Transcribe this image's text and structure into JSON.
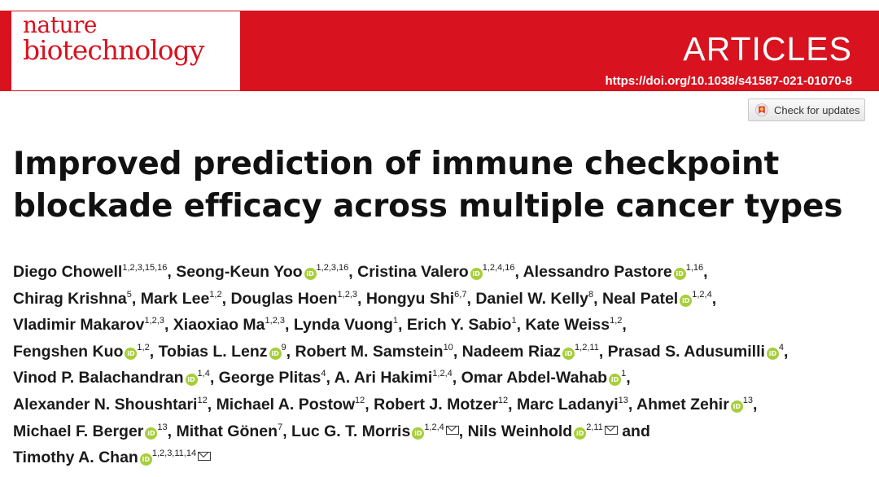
{
  "journal": {
    "name_line1": "nature",
    "name_line2": "biotechnology"
  },
  "header": {
    "section": "ARTICLES",
    "doi": "https://doi.org/10.1038/s41587-021-01070-8"
  },
  "check_updates": {
    "label": "Check for updates"
  },
  "title": {
    "line1": "Improved prediction of immune checkpoint",
    "line2": "blockade efficacy across multiple cancer types"
  },
  "authors": [
    [
      {
        "name": "Diego Chowell",
        "aff": "1,2,3,15,16",
        "orcid": false,
        "sep": ", "
      },
      {
        "name": "Seong-Keun Yoo",
        "aff": "1,2,3,16",
        "orcid": true,
        "sep": ", "
      },
      {
        "name": "Cristina Valero",
        "aff": "1,2,4,16",
        "orcid": true,
        "sep": ", "
      },
      {
        "name": "Alessandro Pastore",
        "aff": "1,16",
        "orcid": true,
        "sep": ","
      }
    ],
    [
      {
        "name": "Chirag Krishna",
        "aff": "5",
        "orcid": false,
        "sep": ", "
      },
      {
        "name": "Mark Lee",
        "aff": "1,2",
        "orcid": false,
        "sep": ", "
      },
      {
        "name": "Douglas Hoen",
        "aff": "1,2,3",
        "orcid": false,
        "sep": ", "
      },
      {
        "name": "Hongyu Shi",
        "aff": "6,7",
        "orcid": false,
        "sep": ", "
      },
      {
        "name": "Daniel W. Kelly",
        "aff": "8",
        "orcid": false,
        "sep": ", "
      },
      {
        "name": "Neal Patel",
        "aff": "1,2,4",
        "orcid": true,
        "sep": ","
      }
    ],
    [
      {
        "name": "Vladimir Makarov",
        "aff": "1,2,3",
        "orcid": false,
        "sep": ", "
      },
      {
        "name": "Xiaoxiao Ma",
        "aff": "1,2,3",
        "orcid": false,
        "sep": ", "
      },
      {
        "name": "Lynda Vuong",
        "aff": "1",
        "orcid": false,
        "sep": ", "
      },
      {
        "name": "Erich Y. Sabio",
        "aff": "1",
        "orcid": false,
        "sep": ", "
      },
      {
        "name": "Kate Weiss",
        "aff": "1,2",
        "orcid": false,
        "sep": ","
      }
    ],
    [
      {
        "name": "Fengshen Kuo",
        "aff": "1,2",
        "orcid": true,
        "sep": ", "
      },
      {
        "name": "Tobias L. Lenz",
        "aff": "9",
        "orcid": true,
        "sep": ", "
      },
      {
        "name": "Robert M. Samstein",
        "aff": "10",
        "orcid": false,
        "sep": ", "
      },
      {
        "name": "Nadeem Riaz",
        "aff": "1,2,11",
        "orcid": true,
        "sep": ", "
      },
      {
        "name": "Prasad S. Adusumilli",
        "aff": "4",
        "orcid": true,
        "sep": ","
      }
    ],
    [
      {
        "name": "Vinod P. Balachandran",
        "aff": "1,4",
        "orcid": true,
        "sep": ", "
      },
      {
        "name": "George Plitas",
        "aff": "4",
        "orcid": false,
        "sep": ", "
      },
      {
        "name": "A. Ari Hakimi",
        "aff": "1,2,4",
        "orcid": false,
        "sep": ", "
      },
      {
        "name": "Omar Abdel-Wahab",
        "aff": "1",
        "orcid": true,
        "sep": ","
      }
    ],
    [
      {
        "name": "Alexander N. Shoushtari",
        "aff": "12",
        "orcid": false,
        "sep": ", "
      },
      {
        "name": "Michael A. Postow",
        "aff": "12",
        "orcid": false,
        "sep": ", "
      },
      {
        "name": "Robert J. Motzer",
        "aff": "12",
        "orcid": false,
        "sep": ", "
      },
      {
        "name": "Marc Ladanyi",
        "aff": "13",
        "orcid": false,
        "sep": ", "
      },
      {
        "name": "Ahmet Zehir",
        "aff": "13",
        "orcid": true,
        "sep": ","
      }
    ],
    [
      {
        "name": "Michael F. Berger",
        "aff": "13",
        "orcid": true,
        "sep": ", "
      },
      {
        "name": "Mithat Gönen",
        "aff": "7",
        "orcid": false,
        "sep": ", "
      },
      {
        "name": "Luc G. T. Morris",
        "aff": "1,2,4",
        "orcid": true,
        "mail": true,
        "sep": ", "
      },
      {
        "name": "Nils Weinhold",
        "aff": "2,11",
        "orcid": true,
        "mail": true,
        "sep": " and"
      }
    ],
    [
      {
        "name": "Timothy A. Chan",
        "aff": "1,2,3,11,14",
        "orcid": true,
        "mail": true,
        "sep": ""
      }
    ]
  ]
}
